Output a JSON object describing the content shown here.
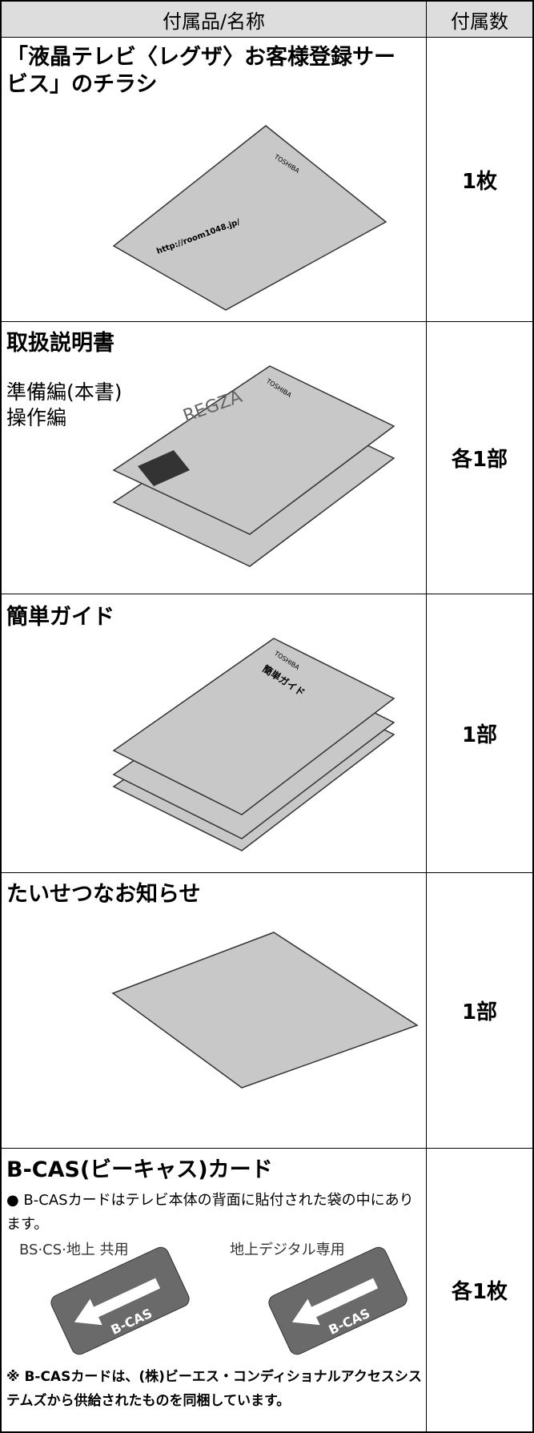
{
  "table": {
    "header": [
      "付属品/名称",
      "付属数"
    ],
    "rows": [
      {
        "name": "「液晶テレビ〈レグザ〉お客様登録サービス」のチラシ",
        "illustration_texts": [
          "TOSHIBA",
          "http://room1048.jp/"
        ],
        "count": "1枚"
      },
      {
        "name": "取扱説明書",
        "details": [
          "準備編(本書)",
          "操作編"
        ],
        "illustration_texts": [
          "TOSHIBA",
          "REGZA"
        ],
        "count": "各1部"
      },
      {
        "name": "簡単ガイド",
        "illustration_texts": [
          "TOSHIBA",
          "簡単ガイド"
        ],
        "count": "1部"
      },
      {
        "name": "たいせつなお知らせ",
        "count": "1部"
      },
      {
        "name": "B-CAS(ビーキャス)カード",
        "note": "● B-CASカードはテレビ本体の背面に貼付された袋の中にあります。",
        "card_labels": [
          "BS·CS·地上 共用",
          "地上デジタル専用"
        ],
        "illustration_texts": [
          "B-CAS",
          "B-CAS"
        ],
        "footnote": "※ B-CASカードは、(株)ビーエス・コンディショナルアクセスシステムズから供給されたものを同梱しています。",
        "count": "各1枚"
      }
    ]
  }
}
